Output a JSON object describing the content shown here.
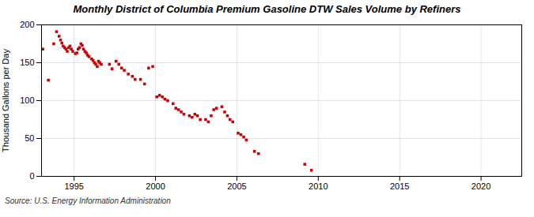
{
  "chart_data": {
    "type": "scatter",
    "title": "Monthly District of Columbia Premium Gasoline DTW Sales Volume by Refiners",
    "ylabel": "Thousand Gallons per Day",
    "source": "Source: U.S. Energy Information Administration",
    "color": "#cc0000",
    "marker": "square",
    "grid": true,
    "xlim": [
      1993.0,
      2022.5
    ],
    "ylim": [
      0,
      200
    ],
    "xticks": [
      1995,
      2000,
      2005,
      2010,
      2015,
      2020
    ],
    "yticks": [
      0,
      50,
      100,
      150,
      200
    ],
    "x": [
      1993.08,
      1993.42,
      1993.75,
      1993.92,
      1994.08,
      1994.17,
      1994.25,
      1994.33,
      1994.42,
      1994.5,
      1994.58,
      1994.67,
      1994.75,
      1994.83,
      1994.92,
      1995.08,
      1995.17,
      1995.25,
      1995.33,
      1995.42,
      1995.5,
      1995.58,
      1995.67,
      1995.75,
      1995.83,
      1995.92,
      1996.08,
      1996.17,
      1996.25,
      1996.33,
      1996.42,
      1996.5,
      1996.58,
      1996.67,
      1997.17,
      1997.33,
      1997.58,
      1997.75,
      1997.92,
      1998.08,
      1998.33,
      1998.58,
      1998.75,
      1999.08,
      1999.33,
      1999.58,
      1999.83,
      2000.08,
      2000.25,
      2000.42,
      2000.58,
      2000.75,
      2001.08,
      2001.25,
      2001.42,
      2001.58,
      2001.75,
      2002.08,
      2002.25,
      2002.42,
      2002.58,
      2002.75,
      2003.08,
      2003.25,
      2003.42,
      2003.58,
      2003.75,
      2004.08,
      2004.25,
      2004.42,
      2004.58,
      2004.75,
      2005.08,
      2005.25,
      2005.42,
      2005.58,
      2006.08,
      2006.33,
      2009.17,
      2009.58
    ],
    "values": [
      168,
      127,
      175,
      191,
      185,
      180,
      176,
      172,
      170,
      168,
      165,
      170,
      172,
      168,
      165,
      162,
      163,
      168,
      170,
      175,
      173,
      168,
      165,
      163,
      160,
      158,
      155,
      153,
      150,
      148,
      145,
      152,
      150,
      148,
      148,
      142,
      152,
      148,
      143,
      140,
      135,
      132,
      128,
      128,
      122,
      143,
      145,
      105,
      107,
      105,
      102,
      100,
      96,
      90,
      88,
      85,
      82,
      80,
      78,
      82,
      80,
      75,
      75,
      72,
      80,
      88,
      90,
      92,
      85,
      80,
      75,
      72,
      57,
      55,
      52,
      48,
      33,
      30,
      16,
      8
    ]
  }
}
